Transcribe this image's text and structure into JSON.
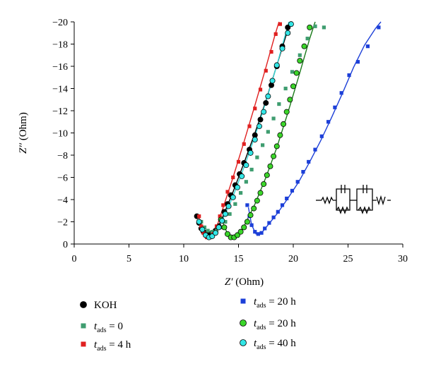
{
  "chart_data": {
    "type": "scatter",
    "title": "",
    "xlabel": {
      "symbol": "Z′",
      "unit": "(Ohm)"
    },
    "ylabel": {
      "symbol": "Z′′",
      "unit": "(Ohm)"
    },
    "xlim": [
      0,
      30
    ],
    "ylim": [
      0,
      -20
    ],
    "x_ticks": [
      0,
      5,
      10,
      15,
      20,
      25,
      30
    ],
    "y_ticks": [
      0,
      -2,
      -4,
      -6,
      -8,
      -10,
      -12,
      -14,
      -16,
      -18,
      -20
    ],
    "y_tick_labels": [
      "0",
      "−2",
      "−4",
      "−6",
      "−8",
      "−10",
      "−12",
      "−14",
      "−16",
      "−18",
      "−20"
    ],
    "grid": false,
    "legend_placement": "bottom",
    "series": [
      {
        "name": "KOH",
        "marker": "circle",
        "color": "#000000",
        "points": [
          [
            11.2,
            -2.5
          ],
          [
            11.4,
            -1.9
          ],
          [
            11.6,
            -1.4
          ],
          [
            11.8,
            -1.1
          ],
          [
            12.0,
            -1.0
          ],
          [
            12.3,
            -0.9
          ],
          [
            12.6,
            -1.0
          ],
          [
            12.9,
            -1.2
          ],
          [
            13.2,
            -1.6
          ],
          [
            13.4,
            -2.2
          ],
          [
            13.7,
            -2.9
          ],
          [
            14.0,
            -3.6
          ],
          [
            14.3,
            -4.4
          ],
          [
            14.7,
            -5.3
          ],
          [
            15.1,
            -6.3
          ],
          [
            15.5,
            -7.3
          ],
          [
            16.0,
            -8.5
          ],
          [
            16.5,
            -9.8
          ],
          [
            17.0,
            -11.2
          ],
          [
            17.5,
            -12.7
          ],
          [
            18.0,
            -14.3
          ],
          [
            18.5,
            -16.0
          ],
          [
            19.0,
            -17.8
          ],
          [
            19.5,
            -19.5
          ]
        ],
        "fit": [
          [
            11.3,
            -2.2
          ],
          [
            11.6,
            -1.4
          ],
          [
            12.0,
            -1.0
          ],
          [
            12.5,
            -0.95
          ],
          [
            13.0,
            -1.3
          ],
          [
            13.5,
            -2.3
          ],
          [
            14.5,
            -4.7
          ],
          [
            15.5,
            -7.3
          ],
          [
            16.5,
            -10.0
          ],
          [
            17.5,
            -12.9
          ],
          [
            18.5,
            -16.1
          ],
          [
            19.5,
            -19.3
          ],
          [
            19.8,
            -20.0
          ]
        ],
        "fit_color": "#000000"
      },
      {
        "name": "t_ads = 0",
        "marker": "square",
        "color": "#3f9d70",
        "points": [
          [
            11.6,
            -2.0
          ],
          [
            11.9,
            -1.5
          ],
          [
            12.2,
            -1.2
          ],
          [
            12.6,
            -1.1
          ],
          [
            13.0,
            -1.2
          ],
          [
            13.4,
            -1.5
          ],
          [
            13.8,
            -2.0
          ],
          [
            14.2,
            -2.7
          ],
          [
            14.7,
            -3.6
          ],
          [
            15.2,
            -4.6
          ],
          [
            15.7,
            -5.6
          ],
          [
            16.2,
            -6.7
          ],
          [
            16.7,
            -7.8
          ],
          [
            17.2,
            -8.9
          ],
          [
            17.7,
            -10.1
          ],
          [
            18.2,
            -11.3
          ],
          [
            18.7,
            -12.6
          ],
          [
            19.3,
            -14.0
          ],
          [
            19.9,
            -15.5
          ],
          [
            20.6,
            -17.0
          ],
          [
            21.3,
            -18.5
          ],
          [
            22.0,
            -19.6
          ],
          [
            22.8,
            -19.5
          ]
        ],
        "fit": [],
        "fit_color": ""
      },
      {
        "name": "t_ads = 4 h",
        "marker": "square",
        "color": "#e02020",
        "points": [
          [
            11.4,
            -2.5
          ],
          [
            11.6,
            -1.6
          ],
          [
            11.8,
            -1.0
          ],
          [
            12.1,
            -0.6
          ],
          [
            12.4,
            -0.6
          ],
          [
            12.7,
            -0.9
          ],
          [
            13.0,
            -1.6
          ],
          [
            13.3,
            -2.5
          ],
          [
            13.6,
            -3.5
          ],
          [
            14.0,
            -4.7
          ],
          [
            14.5,
            -6.0
          ],
          [
            15.0,
            -7.4
          ],
          [
            15.5,
            -9.0
          ],
          [
            16.0,
            -10.6
          ],
          [
            16.5,
            -12.2
          ],
          [
            17.0,
            -13.9
          ],
          [
            17.5,
            -15.6
          ],
          [
            18.0,
            -17.3
          ],
          [
            18.4,
            -18.9
          ],
          [
            18.8,
            -19.8
          ]
        ],
        "fit": [
          [
            11.4,
            -2.4
          ],
          [
            11.7,
            -1.3
          ],
          [
            12.1,
            -0.6
          ],
          [
            12.5,
            -0.6
          ],
          [
            12.9,
            -1.2
          ],
          [
            13.5,
            -3.0
          ],
          [
            14.5,
            -6.0
          ],
          [
            15.5,
            -9.2
          ],
          [
            16.5,
            -12.5
          ],
          [
            17.5,
            -15.9
          ],
          [
            18.3,
            -18.7
          ],
          [
            18.7,
            -20.0
          ]
        ],
        "fit_color": "#e02020"
      },
      {
        "name": "t_ads = 20 h",
        "marker": "square",
        "color": "#1c3fd8",
        "points": [
          [
            15.8,
            -3.5
          ],
          [
            16.0,
            -2.5
          ],
          [
            16.2,
            -1.7
          ],
          [
            16.5,
            -1.1
          ],
          [
            16.8,
            -0.9
          ],
          [
            17.1,
            -1.0
          ],
          [
            17.4,
            -1.4
          ],
          [
            17.8,
            -1.9
          ],
          [
            18.2,
            -2.4
          ],
          [
            18.6,
            -2.9
          ],
          [
            19.0,
            -3.5
          ],
          [
            19.4,
            -4.1
          ],
          [
            19.9,
            -4.8
          ],
          [
            20.4,
            -5.6
          ],
          [
            20.9,
            -6.5
          ],
          [
            21.4,
            -7.4
          ],
          [
            22.0,
            -8.5
          ],
          [
            22.6,
            -9.7
          ],
          [
            23.2,
            -11.0
          ],
          [
            23.8,
            -12.3
          ],
          [
            24.4,
            -13.6
          ],
          [
            25.1,
            -15.2
          ],
          [
            25.9,
            -16.4
          ],
          [
            26.8,
            -17.8
          ],
          [
            27.8,
            -19.5
          ]
        ],
        "fit": [
          [
            15.9,
            -3.3
          ],
          [
            16.2,
            -1.7
          ],
          [
            16.6,
            -0.9
          ],
          [
            17.1,
            -1.0
          ],
          [
            17.6,
            -1.6
          ],
          [
            18.5,
            -2.7
          ],
          [
            19.5,
            -4.1
          ],
          [
            20.5,
            -5.6
          ],
          [
            21.5,
            -7.4
          ],
          [
            22.5,
            -9.3
          ],
          [
            23.5,
            -11.4
          ],
          [
            24.5,
            -13.6
          ],
          [
            25.5,
            -15.9
          ],
          [
            26.5,
            -17.9
          ],
          [
            27.5,
            -19.4
          ],
          [
            28.0,
            -20.0
          ]
        ],
        "fit_color": "#1c3fd8"
      },
      {
        "name": "t_ads = 20 h",
        "marker": "circle",
        "color": "#3bd62a",
        "points": [
          [
            13.4,
            -2.2
          ],
          [
            13.7,
            -1.5
          ],
          [
            14.0,
            -0.9
          ],
          [
            14.3,
            -0.6
          ],
          [
            14.6,
            -0.6
          ],
          [
            14.9,
            -0.8
          ],
          [
            15.2,
            -1.1
          ],
          [
            15.5,
            -1.5
          ],
          [
            15.8,
            -2.0
          ],
          [
            16.1,
            -2.6
          ],
          [
            16.4,
            -3.2
          ],
          [
            16.7,
            -3.9
          ],
          [
            17.0,
            -4.6
          ],
          [
            17.3,
            -5.4
          ],
          [
            17.6,
            -6.2
          ],
          [
            17.9,
            -7.0
          ],
          [
            18.2,
            -7.9
          ],
          [
            18.5,
            -8.8
          ],
          [
            18.8,
            -9.8
          ],
          [
            19.1,
            -10.8
          ],
          [
            19.4,
            -11.9
          ],
          [
            19.7,
            -13.0
          ],
          [
            20.0,
            -14.2
          ],
          [
            20.3,
            -15.4
          ],
          [
            20.6,
            -16.5
          ],
          [
            21.0,
            -17.8
          ],
          [
            21.5,
            -19.5
          ]
        ],
        "fit": [
          [
            13.5,
            -2.1
          ],
          [
            14.0,
            -0.9
          ],
          [
            14.5,
            -0.55
          ],
          [
            15.0,
            -0.8
          ],
          [
            15.5,
            -1.6
          ],
          [
            16.5,
            -3.6
          ],
          [
            17.5,
            -6.0
          ],
          [
            18.5,
            -8.7
          ],
          [
            19.5,
            -11.8
          ],
          [
            20.5,
            -15.1
          ],
          [
            21.5,
            -18.5
          ],
          [
            22.0,
            -20.0
          ]
        ],
        "fit_color": "#1a7a1a"
      },
      {
        "name": "t_ads = 40 h",
        "marker": "circle",
        "color": "#33e6e6",
        "points": [
          [
            11.4,
            -2.0
          ],
          [
            11.7,
            -1.3
          ],
          [
            12.0,
            -0.8
          ],
          [
            12.3,
            -0.6
          ],
          [
            12.6,
            -0.7
          ],
          [
            12.9,
            -1.0
          ],
          [
            13.2,
            -1.5
          ],
          [
            13.5,
            -2.1
          ],
          [
            13.8,
            -2.7
          ],
          [
            14.1,
            -3.4
          ],
          [
            14.5,
            -4.2
          ],
          [
            14.9,
            -5.1
          ],
          [
            15.3,
            -6.1
          ],
          [
            15.7,
            -7.1
          ],
          [
            16.1,
            -8.2
          ],
          [
            16.5,
            -9.4
          ],
          [
            16.9,
            -10.6
          ],
          [
            17.3,
            -11.9
          ],
          [
            17.7,
            -13.3
          ],
          [
            18.1,
            -14.7
          ],
          [
            18.5,
            -16.1
          ],
          [
            19.0,
            -17.6
          ],
          [
            19.5,
            -19.0
          ],
          [
            19.8,
            -19.8
          ]
        ],
        "fit": [
          [
            11.5,
            -1.8
          ],
          [
            12.0,
            -0.8
          ],
          [
            12.5,
            -0.6
          ],
          [
            13.0,
            -1.1
          ],
          [
            13.5,
            -2.1
          ],
          [
            14.5,
            -4.3
          ],
          [
            15.5,
            -6.9
          ],
          [
            16.5,
            -9.7
          ],
          [
            17.5,
            -12.8
          ],
          [
            18.5,
            -16.1
          ],
          [
            19.4,
            -19.3
          ],
          [
            19.6,
            -20.0
          ]
        ],
        "fit_color": "#33d6d6"
      }
    ]
  },
  "legend": [
    {
      "marker": "circle",
      "color": "#000000",
      "prefix": "KOH",
      "sub": "",
      "suffix": ""
    },
    {
      "marker": "square",
      "color": "#3f9d70",
      "prefix": "t",
      "sub": "ads",
      "suffix": " = 0"
    },
    {
      "marker": "square",
      "color": "#e02020",
      "prefix": "t",
      "sub": "ads",
      "suffix": " = 4 h"
    },
    {
      "marker": "square",
      "color": "#1c3fd8",
      "prefix": "t",
      "sub": "ads",
      "suffix": " = 20 h"
    },
    {
      "marker": "circle",
      "color": "#3bd62a",
      "prefix": "t",
      "sub": "ads",
      "suffix": " = 20 h"
    },
    {
      "marker": "circle",
      "color": "#33e6e6",
      "prefix": "t",
      "sub": "ads",
      "suffix": " = 40 h"
    }
  ],
  "inset": {
    "type": "equivalent-circuit"
  }
}
